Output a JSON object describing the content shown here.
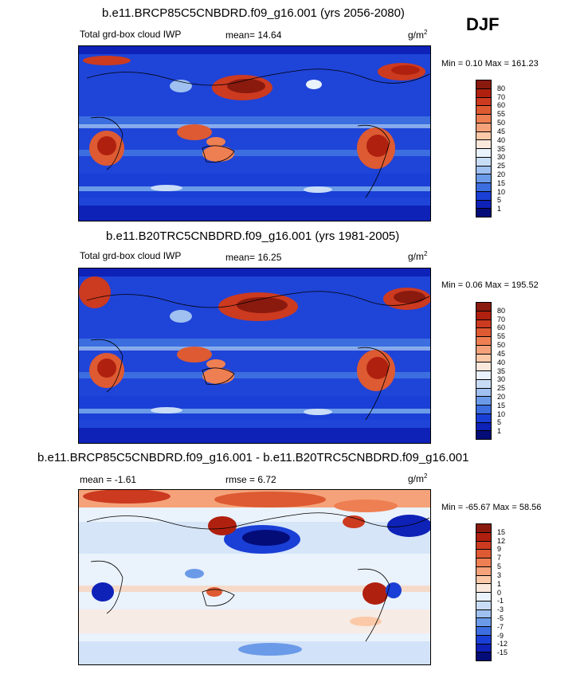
{
  "season": "DJF",
  "panels": [
    {
      "title": "b.e11.BRCP85C5CNBDRD.f09_g16.001 (yrs 2056-2080)",
      "left_label": "Total grd-box cloud IWP",
      "stat_label": "mean=",
      "stat_value": "14.64",
      "stat_text": "mean=  14.64",
      "unit_base": "g/m",
      "unit_exp": "2",
      "min_label": "Min =",
      "min_value": "0.10",
      "max_label": "Max =",
      "max_value": "161.23",
      "minmax_text": "Min =   0.10 Max = 161.23"
    },
    {
      "title": "b.e11.B20TRC5CNBDRD.f09_g16.001 (yrs 1981-2005)",
      "left_label": "Total grd-box cloud IWP",
      "stat_label": "mean=",
      "stat_value": "16.25",
      "stat_text": "mean=  16.25",
      "unit_base": "g/m",
      "unit_exp": "2",
      "min_label": "Min =",
      "min_value": "0.06",
      "max_label": "Max =",
      "max_value": "195.52",
      "minmax_text": "Min =   0.06 Max = 195.52"
    },
    {
      "title": "b.e11.BRCP85C5CNBDRD.f09_g16.001 - b.e11.B20TRC5CNBDRD.f09_g16.001",
      "left_label": "mean =  -1.61",
      "stat_label": "rmse =",
      "stat_value": "6.72",
      "stat_text": "rmse =   6.72",
      "unit_base": "g/m",
      "unit_exp": "2",
      "min_label": "Min =",
      "min_value": "-65.67",
      "max_label": "Max =",
      "max_value": "58.56",
      "minmax_text": "Min = -65.67 Max =  58.56"
    }
  ],
  "colorbars": {
    "abs": {
      "levels": [
        "80",
        "70",
        "60",
        "55",
        "50",
        "45",
        "40",
        "35",
        "30",
        "25",
        "20",
        "15",
        "10",
        "5",
        "1"
      ],
      "colors": [
        "#8b1a0e",
        "#b0200f",
        "#cc3a20",
        "#dd5a32",
        "#ee7f52",
        "#f5a27a",
        "#fbc9a8",
        "#fbe8dc",
        "#eaf2fb",
        "#c8dcf6",
        "#9fc0f0",
        "#6b9ae8",
        "#3c6ee0",
        "#1a3fd6",
        "#0e22b8",
        "#040c78"
      ]
    },
    "diff": {
      "levels": [
        "15",
        "12",
        "9",
        "7",
        "5",
        "3",
        "1",
        "0",
        "-1",
        "-3",
        "-5",
        "-7",
        "-9",
        "-12",
        "-15"
      ],
      "colors": [
        "#8b1a0e",
        "#b0200f",
        "#cc3a20",
        "#dd5a32",
        "#ee7f52",
        "#f5a27a",
        "#fbc9a8",
        "#fbe8dc",
        "#eaf2fb",
        "#c8dcf6",
        "#9fc0f0",
        "#6b9ae8",
        "#3c6ee0",
        "#1a3fd6",
        "#0e22b8",
        "#040c78"
      ]
    }
  },
  "chart_data": [
    {
      "type": "heatmap",
      "title": "b.e11.BRCP85C5CNBDRD.f09_g16.001 (yrs 2056-2080)",
      "variable": "Total grd-box cloud IWP",
      "units": "g/m2",
      "season": "DJF",
      "mean": 14.64,
      "min": 0.1,
      "max": 161.23,
      "contour_levels": [
        1,
        5,
        10,
        15,
        20,
        25,
        30,
        35,
        40,
        45,
        50,
        55,
        60,
        70,
        80
      ]
    },
    {
      "type": "heatmap",
      "title": "b.e11.B20TRC5CNBDRD.f09_g16.001 (yrs 1981-2005)",
      "variable": "Total grd-box cloud IWP",
      "units": "g/m2",
      "season": "DJF",
      "mean": 16.25,
      "min": 0.06,
      "max": 195.52,
      "contour_levels": [
        1,
        5,
        10,
        15,
        20,
        25,
        30,
        35,
        40,
        45,
        50,
        55,
        60,
        70,
        80
      ]
    },
    {
      "type": "heatmap",
      "title": "b.e11.BRCP85C5CNBDRD.f09_g16.001 - b.e11.B20TRC5CNBDRD.f09_g16.001",
      "units": "g/m2",
      "season": "DJF",
      "mean": -1.61,
      "rmse": 6.72,
      "min": -65.67,
      "max": 58.56,
      "contour_levels": [
        -15,
        -12,
        -9,
        -7,
        -5,
        -3,
        -1,
        0,
        1,
        3,
        5,
        7,
        9,
        12,
        15
      ]
    }
  ]
}
